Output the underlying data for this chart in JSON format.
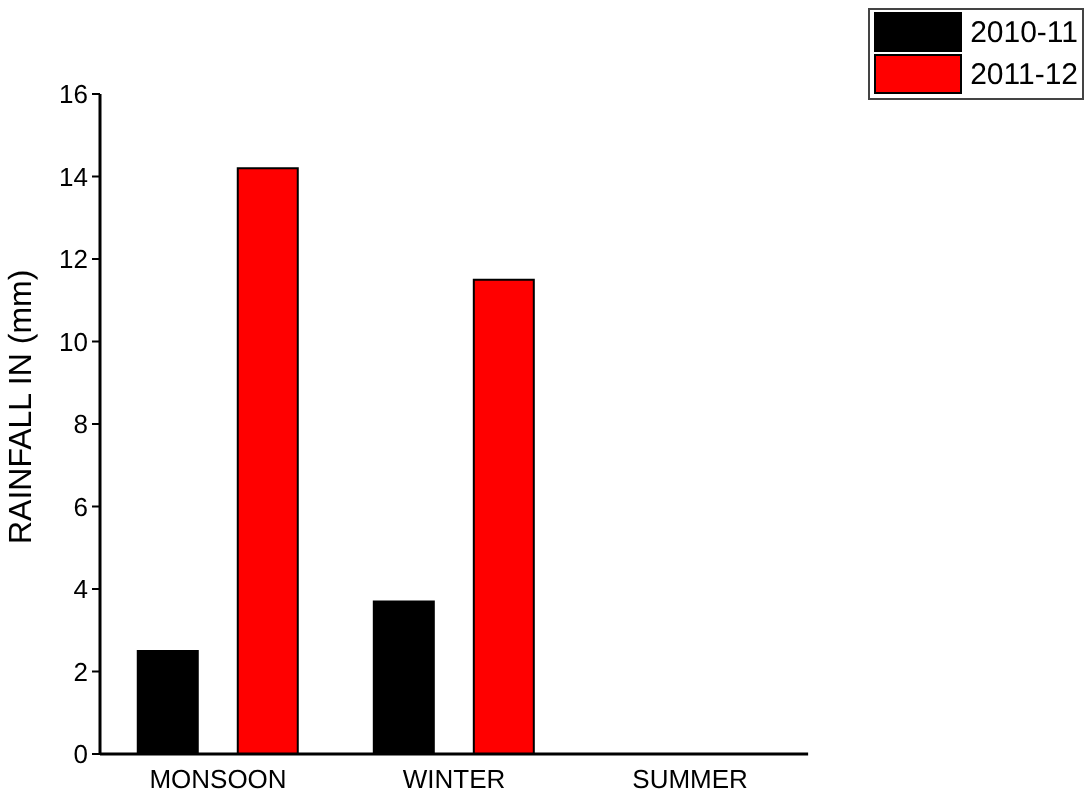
{
  "chart_data": {
    "type": "bar",
    "ylabel": "RAINFALL IN (mm)",
    "categories": [
      "MONSOON",
      "WINTER",
      "SUMMER"
    ],
    "series": [
      {
        "name": "2010-11",
        "color": "#000000",
        "values": [
          2.5,
          3.7,
          0
        ]
      },
      {
        "name": "2011-12",
        "color": "#ff0000",
        "values": [
          14.2,
          11.5,
          0
        ]
      }
    ],
    "ylim": [
      0,
      16
    ],
    "yticks": [
      0,
      2,
      4,
      6,
      8,
      10,
      12,
      14,
      16
    ],
    "grid": false,
    "legend": "top right"
  }
}
